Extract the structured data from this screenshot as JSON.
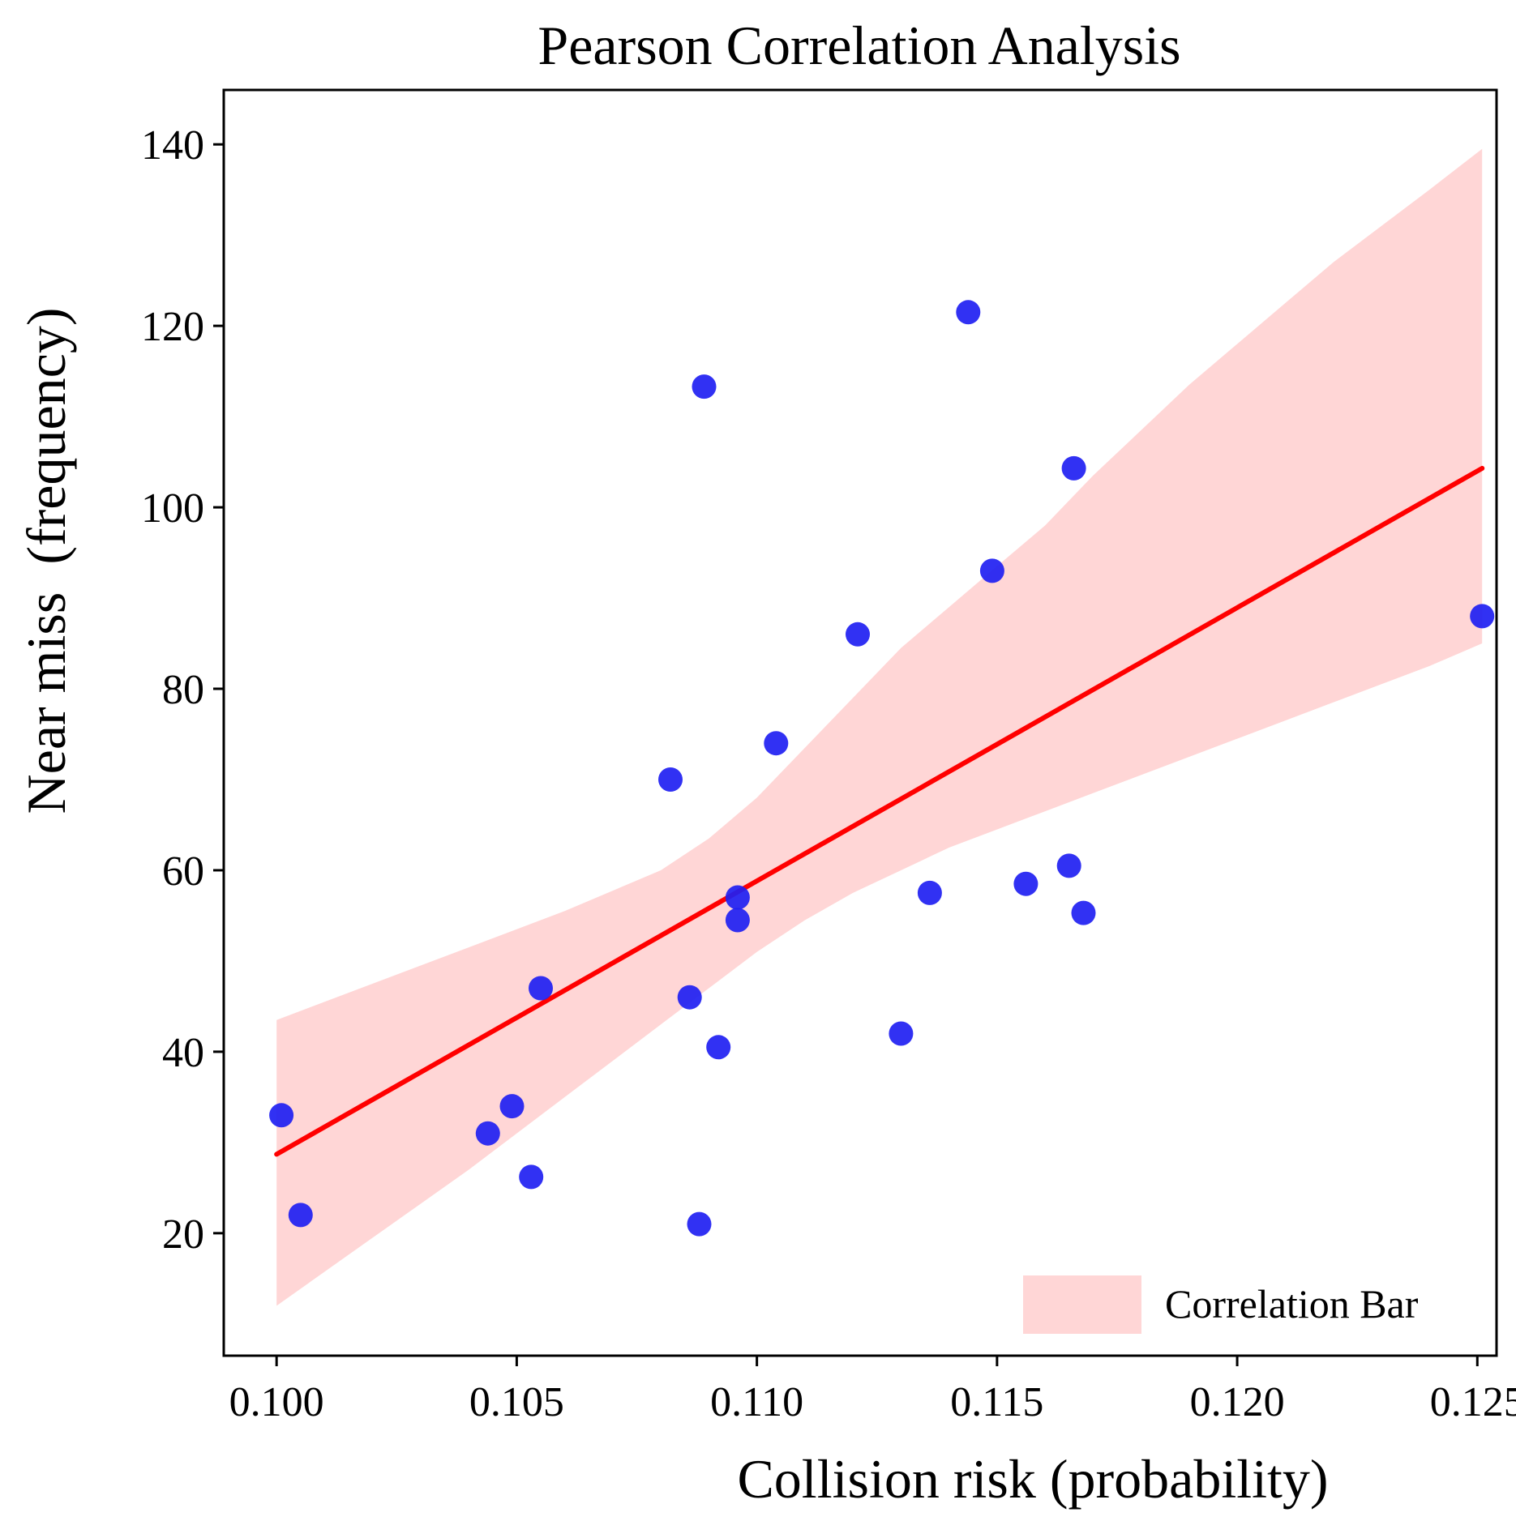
{
  "chart_data": {
    "type": "scatter",
    "title": "Pearson Correlation Analysis",
    "xlabel": "Collision risk (probability)",
    "ylabel": "Near miss  (frequency)",
    "xlim": [
      0.0989,
      0.1254
    ],
    "ylim": [
      6.5,
      146
    ],
    "xticks": [
      0.1,
      0.105,
      0.11,
      0.115,
      0.12,
      0.125
    ],
    "xtick_labels": [
      "0.100",
      "0.105",
      "0.110",
      "0.115",
      "0.120",
      "0.125"
    ],
    "yticks": [
      20,
      40,
      60,
      80,
      100,
      120,
      140
    ],
    "ytick_labels": [
      "20",
      "40",
      "60",
      "80",
      "100",
      "120",
      "140"
    ],
    "grid": false,
    "legend": {
      "position": "lower-right",
      "entries": [
        "Correlation Bar"
      ]
    },
    "colors": {
      "points": "#1f1ff2",
      "line": "#ff0000",
      "band": "#ffd6d6",
      "frame": "#000000"
    },
    "series": [
      {
        "name": "observations",
        "kind": "scatter",
        "points": [
          {
            "x": 0.1001,
            "y": 33.0
          },
          {
            "x": 0.1005,
            "y": 22.0
          },
          {
            "x": 0.1044,
            "y": 31.0
          },
          {
            "x": 0.1049,
            "y": 34.0
          },
          {
            "x": 0.1053,
            "y": 26.2
          },
          {
            "x": 0.1055,
            "y": 47.0
          },
          {
            "x": 0.1082,
            "y": 70.0
          },
          {
            "x": 0.1086,
            "y": 46.0
          },
          {
            "x": 0.1088,
            "y": 21.0
          },
          {
            "x": 0.1089,
            "y": 113.3
          },
          {
            "x": 0.1092,
            "y": 40.5
          },
          {
            "x": 0.1096,
            "y": 57.0
          },
          {
            "x": 0.1096,
            "y": 54.5
          },
          {
            "x": 0.1104,
            "y": 74.0
          },
          {
            "x": 0.1121,
            "y": 86.0
          },
          {
            "x": 0.113,
            "y": 42.0
          },
          {
            "x": 0.1136,
            "y": 57.5
          },
          {
            "x": 0.1144,
            "y": 121.5
          },
          {
            "x": 0.1149,
            "y": 93.0
          },
          {
            "x": 0.1156,
            "y": 58.5
          },
          {
            "x": 0.1165,
            "y": 60.5
          },
          {
            "x": 0.1166,
            "y": 104.3
          },
          {
            "x": 0.1168,
            "y": 55.3
          },
          {
            "x": 0.1251,
            "y": 88.0
          }
        ]
      },
      {
        "name": "regression line",
        "kind": "line",
        "points": [
          {
            "x": 0.1,
            "y": 28.7
          },
          {
            "x": 0.1251,
            "y": 104.3
          }
        ]
      },
      {
        "name": "Correlation Bar",
        "kind": "band",
        "x": [
          0.1,
          0.102,
          0.104,
          0.106,
          0.108,
          0.109,
          0.11,
          0.111,
          0.112,
          0.113,
          0.114,
          0.115,
          0.116,
          0.117,
          0.118,
          0.119,
          0.12,
          0.121,
          0.122,
          0.123,
          0.124,
          0.1251
        ],
        "upper": [
          43.5,
          47.5,
          51.5,
          55.5,
          60.0,
          63.5,
          68.0,
          73.5,
          79.0,
          84.5,
          89.0,
          93.5,
          98.0,
          103.5,
          108.5,
          113.5,
          118.0,
          122.5,
          127.0,
          131.0,
          135.0,
          139.5
        ],
        "lower": [
          12.0,
          19.5,
          27.0,
          35.0,
          43.0,
          47.0,
          51.0,
          54.5,
          57.5,
          60.0,
          62.5,
          64.5,
          66.5,
          68.5,
          70.5,
          72.5,
          74.5,
          76.5,
          78.5,
          80.5,
          82.5,
          85.0
        ]
      }
    ]
  }
}
